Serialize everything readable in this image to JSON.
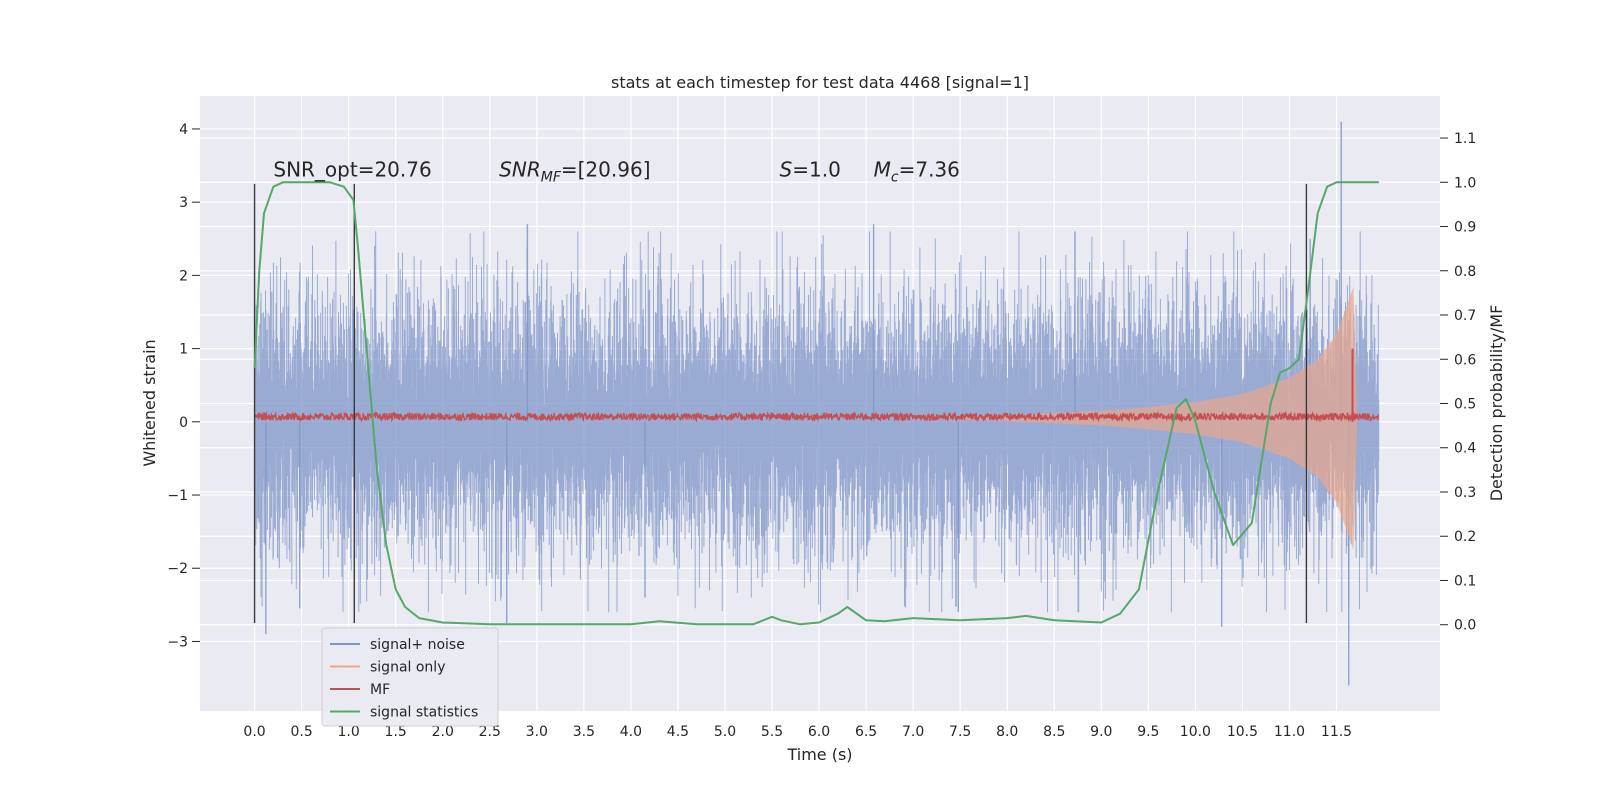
{
  "chart_data": {
    "type": "line",
    "title": "stats at each timestep for test data 4468 [signal=1]",
    "xlabel": "Time (s)",
    "ylabel": "Whitened strain",
    "y2label": "Detection probability/MF",
    "xlim": [
      -0.58,
      12.6
    ],
    "ylim": [
      -3.95,
      4.45
    ],
    "y2lim": [
      -0.195,
      1.195
    ],
    "x_ticks": [
      0.0,
      0.5,
      1.0,
      1.5,
      2.0,
      2.5,
      3.0,
      3.5,
      4.0,
      4.5,
      5.0,
      5.5,
      6.0,
      6.5,
      7.0,
      7.5,
      8.0,
      8.5,
      9.0,
      9.5,
      10.0,
      10.5,
      11.0,
      11.5
    ],
    "x_tick_labels": [
      "0.0",
      "0.5",
      "1.0",
      "1.5",
      "2.0",
      "2.5",
      "3.0",
      "3.5",
      "4.0",
      "4.5",
      "5.0",
      "5.5",
      "6.0",
      "6.5",
      "7.0",
      "7.5",
      "8.0",
      "8.5",
      "9.0",
      "9.5",
      "10.0",
      "10.5",
      "11.0",
      "11.5"
    ],
    "y_ticks": [
      -3,
      -2,
      -1,
      0,
      1,
      2,
      3,
      4
    ],
    "y_tick_labels": [
      "−3",
      "−2",
      "−1",
      "0",
      "1",
      "2",
      "3",
      "4"
    ],
    "y2_ticks": [
      0.0,
      0.1,
      0.2,
      0.3,
      0.4,
      0.5,
      0.6,
      0.7,
      0.8,
      0.9,
      1.0,
      1.1
    ],
    "y2_tick_labels": [
      "0.0",
      "0.1",
      "0.2",
      "0.3",
      "0.4",
      "0.5",
      "0.6",
      "0.7",
      "0.8",
      "0.9",
      "1.0",
      "1.1"
    ],
    "grid": true,
    "legend_position": "lower-left",
    "annotations": [
      {
        "text": "SNR_opt=20.76",
        "x": 0.2,
        "y": 3.35
      },
      {
        "text": "SNR_MF=[20.96]",
        "x": 2.6,
        "y": 3.35
      },
      {
        "text": "S=1.0",
        "x": 5.58,
        "y": 3.35
      },
      {
        "text": "M_c=7.36",
        "x": 6.58,
        "y": 3.35
      }
    ],
    "vertical_markers": [
      {
        "x": 0.0,
        "y_range": [
          -2.75,
          3.25
        ]
      },
      {
        "x": 1.06,
        "y_range": [
          -2.75,
          3.25
        ]
      },
      {
        "x": 11.18,
        "y_range": [
          -2.75,
          3.25
        ]
      }
    ],
    "series": [
      {
        "name": "signal+ noise",
        "color": "#7f96c8",
        "axis": "left",
        "x_range": [
          0.0,
          11.95
        ],
        "envelope_sigma": 0.85,
        "spikes": [
          {
            "x": 0.12,
            "y": -2.9
          },
          {
            "x": 0.48,
            "y": -2.55
          },
          {
            "x": 2.68,
            "y": -2.75
          },
          {
            "x": 2.9,
            "y": 2.7
          },
          {
            "x": 4.15,
            "y": -2.4
          },
          {
            "x": 6.58,
            "y": 2.7
          },
          {
            "x": 7.48,
            "y": -2.6
          },
          {
            "x": 8.72,
            "y": 2.6
          },
          {
            "x": 10.28,
            "y": -2.8
          },
          {
            "x": 11.55,
            "y": 4.1
          },
          {
            "x": 11.63,
            "y": -3.6
          },
          {
            "x": 11.22,
            "y": 2.5
          }
        ]
      },
      {
        "name": "signal only",
        "color": "#e8a68c",
        "axis": "left",
        "x": [
          7.0,
          8.0,
          9.0,
          9.5,
          10.0,
          10.5,
          11.0,
          11.3,
          11.5,
          11.6,
          11.68,
          11.72
        ],
        "amplitude": [
          0.0,
          0.04,
          0.1,
          0.15,
          0.22,
          0.33,
          0.55,
          0.8,
          1.15,
          1.5,
          1.8,
          0.0
        ]
      },
      {
        "name": "MF",
        "color": "#c44e52",
        "axis": "left",
        "x_range": [
          0.0,
          11.95
        ],
        "baseline": 0.07,
        "noise_amplitude": 0.05,
        "spike": {
          "x": 11.67,
          "y": 1.0
        }
      },
      {
        "name": "signal statistics",
        "color": "#55a868",
        "axis": "right",
        "x": [
          0.0,
          0.05,
          0.1,
          0.2,
          0.3,
          0.5,
          0.8,
          0.95,
          1.05,
          1.1,
          1.2,
          1.3,
          1.4,
          1.5,
          1.6,
          1.75,
          2.0,
          2.5,
          3.0,
          4.0,
          4.3,
          4.7,
          5.3,
          5.5,
          5.6,
          5.8,
          6.0,
          6.2,
          6.3,
          6.5,
          6.7,
          7.0,
          7.5,
          8.0,
          8.2,
          8.5,
          9.0,
          9.2,
          9.4,
          9.6,
          9.8,
          9.9,
          10.0,
          10.2,
          10.4,
          10.6,
          10.8,
          10.9,
          11.0,
          11.1,
          11.2,
          11.3,
          11.4,
          11.5,
          11.6,
          11.8,
          11.95
        ],
        "y": [
          0.58,
          0.8,
          0.93,
          0.99,
          1.0,
          1.0,
          1.0,
          0.99,
          0.96,
          0.85,
          0.6,
          0.35,
          0.18,
          0.08,
          0.04,
          0.015,
          0.005,
          0.001,
          0.001,
          0.001,
          0.008,
          0.001,
          0.001,
          0.018,
          0.01,
          0.001,
          0.005,
          0.025,
          0.04,
          0.01,
          0.008,
          0.015,
          0.01,
          0.015,
          0.02,
          0.01,
          0.005,
          0.025,
          0.08,
          0.3,
          0.49,
          0.51,
          0.46,
          0.3,
          0.18,
          0.23,
          0.5,
          0.57,
          0.58,
          0.6,
          0.76,
          0.93,
          0.99,
          1.0,
          1.0,
          1.0,
          1.0
        ]
      }
    ],
    "legend": [
      {
        "name": "signal+ noise",
        "color": "#7f96c8"
      },
      {
        "name": "signal only",
        "color": "#e8a68c"
      },
      {
        "name": "MF",
        "color": "#c44e52"
      },
      {
        "name": "signal statistics",
        "color": "#55a868"
      }
    ]
  }
}
